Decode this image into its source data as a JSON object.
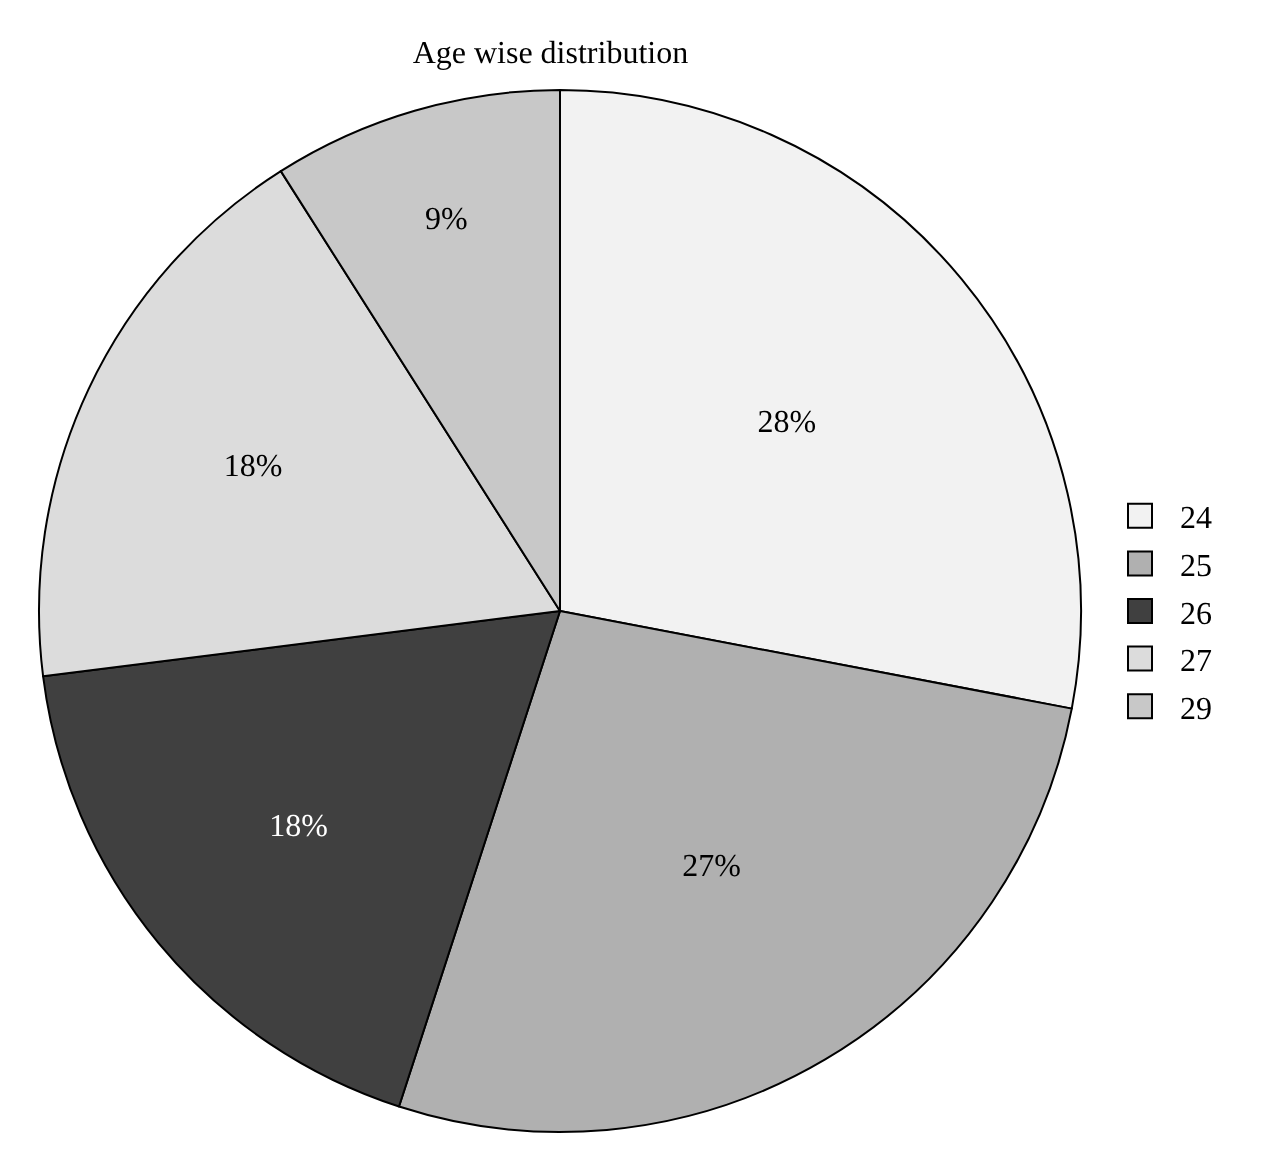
{
  "chart_data": {
    "type": "pie",
    "title": "Age wise distribution",
    "categories": [
      "24",
      "25",
      "26",
      "27",
      "29"
    ],
    "values": [
      28,
      27,
      18,
      18,
      9
    ],
    "value_labels": [
      "28%",
      "27%",
      "18%",
      "18%",
      "9%"
    ],
    "colors": [
      "#f2f2f2",
      "#b0b0b0",
      "#404040",
      "#dcdcdc",
      "#c8c8c8"
    ],
    "legend": "right"
  }
}
